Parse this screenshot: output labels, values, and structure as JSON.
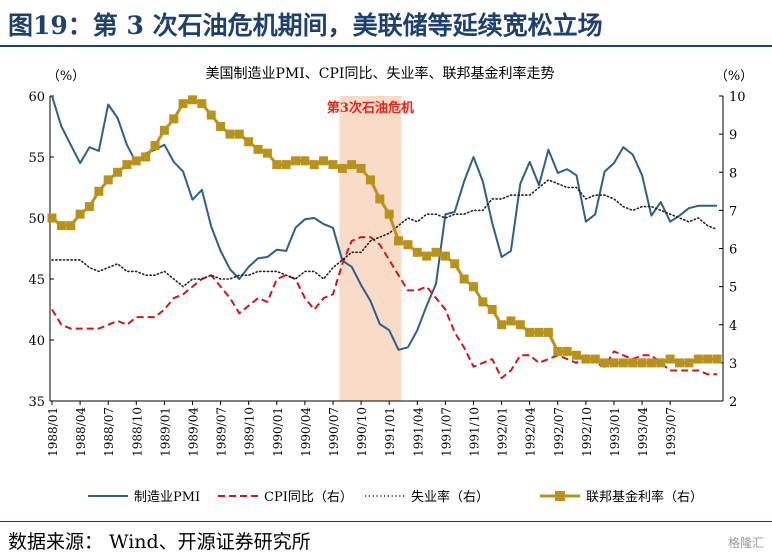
{
  "header": {
    "title": "图19：第 3 次石油危机期间，美联储等延续宽松立场"
  },
  "footer": {
    "source_label": "数据来源：",
    "source_text": "Wind、开源证券研究所",
    "watermark": "格隆汇"
  },
  "chart_data": {
    "type": "line",
    "title": "美国制造业PMI、CPI同比、失业率、联邦基金利率走势",
    "y_left_unit": "（%）",
    "y_right_unit": "（%）",
    "y_left_lim": [
      35,
      60
    ],
    "y_left_ticks": [
      "35",
      "40",
      "45",
      "50",
      "55",
      "60"
    ],
    "y_right_lim": [
      2,
      10
    ],
    "y_right_ticks": [
      "2",
      "3",
      "4",
      "5",
      "6",
      "7",
      "8",
      "9",
      "10"
    ],
    "x_tick_labels": [
      "1988/01",
      "1988/04",
      "1988/07",
      "1988/10",
      "1989/01",
      "1989/04",
      "1989/07",
      "1989/10",
      "1990/01",
      "1990/04",
      "1990/07",
      "1990/10",
      "1991/01",
      "1991/04",
      "1991/07",
      "1991/10",
      "1992/01",
      "1992/04",
      "1992/07",
      "1992/10",
      "1993/01",
      "1993/04",
      "1993/07"
    ],
    "shaded_period": {
      "label": "第3次石油危机",
      "start": "1990/08",
      "end": "1991/02",
      "color": "#f9dcc8",
      "label_color": "#e8231b"
    },
    "x": [
      "1988/01",
      "1988/02",
      "1988/03",
      "1988/04",
      "1988/05",
      "1988/06",
      "1988/07",
      "1988/08",
      "1988/09",
      "1988/10",
      "1988/11",
      "1988/12",
      "1989/01",
      "1989/02",
      "1989/03",
      "1989/04",
      "1989/05",
      "1989/06",
      "1989/07",
      "1989/08",
      "1989/09",
      "1989/10",
      "1989/11",
      "1989/12",
      "1990/01",
      "1990/02",
      "1990/03",
      "1990/04",
      "1990/05",
      "1990/06",
      "1990/07",
      "1990/08",
      "1990/09",
      "1990/10",
      "1990/11",
      "1990/12",
      "1991/01",
      "1991/02",
      "1991/03",
      "1991/04",
      "1991/05",
      "1991/06",
      "1991/07",
      "1991/08",
      "1991/09",
      "1991/10",
      "1991/11",
      "1991/12",
      "1992/01",
      "1992/02",
      "1992/03",
      "1992/04",
      "1992/05",
      "1992/06",
      "1992/07",
      "1992/08",
      "1992/09",
      "1992/10",
      "1992/11",
      "1992/12",
      "1993/01",
      "1993/02",
      "1993/03",
      "1993/04",
      "1993/05",
      "1993/06",
      "1993/07",
      "1993/08",
      "1993/09",
      "1993/10",
      "1993/11",
      "1993/12"
    ],
    "series": [
      {
        "name": "制造业PMI",
        "axis": "left",
        "style": "solid",
        "color": "#2e5f8a",
        "values": [
          60.0,
          57.5,
          56.0,
          54.5,
          55.8,
          55.5,
          59.3,
          58.2,
          56.0,
          54.5,
          55.3,
          55.6,
          56.0,
          54.6,
          53.8,
          51.5,
          52.3,
          49.3,
          47.3,
          45.8,
          45.0,
          46.0,
          46.7,
          46.8,
          47.4,
          47.3,
          49.2,
          49.9,
          50.0,
          49.5,
          49.2,
          46.5,
          46.0,
          44.5,
          43.2,
          41.3,
          40.8,
          39.2,
          39.4,
          40.8,
          42.8,
          44.6,
          50.3,
          50.5,
          53.0,
          55.0,
          53.0,
          49.6,
          46.8,
          47.3,
          52.8,
          54.6,
          52.7,
          55.6,
          53.7,
          54.0,
          53.5,
          49.7,
          50.3,
          53.8,
          54.5,
          55.8,
          55.2,
          53.5,
          50.2,
          51.3,
          49.7,
          50.2,
          50.8,
          51.0,
          51.0,
          51.0
        ]
      },
      {
        "name": "CPI同比（右）",
        "axis": "right",
        "style": "dashed",
        "color": "#c8191e",
        "values": [
          4.4,
          4.0,
          3.9,
          3.9,
          3.9,
          3.9,
          4.0,
          4.1,
          4.0,
          4.2,
          4.2,
          4.2,
          4.4,
          4.7,
          4.8,
          5.0,
          5.2,
          5.3,
          5.0,
          4.7,
          4.3,
          4.5,
          4.7,
          4.6,
          5.2,
          5.3,
          5.2,
          4.7,
          4.4,
          4.7,
          4.8,
          5.6,
          6.2,
          6.3,
          6.3,
          6.1,
          5.7,
          5.3,
          4.9,
          4.9,
          5.0,
          4.7,
          4.4,
          3.8,
          3.4,
          2.9,
          3.0,
          3.1,
          2.6,
          2.8,
          3.2,
          3.2,
          3.0,
          3.1,
          3.2,
          3.1,
          3.0,
          3.2,
          3.0,
          2.9,
          3.3,
          3.2,
          3.1,
          3.2,
          3.2,
          3.0,
          2.8,
          2.8,
          2.8,
          2.8,
          2.7,
          2.7
        ]
      },
      {
        "name": "失业率（右）",
        "axis": "right",
        "style": "dotted",
        "color": "#222222",
        "values": [
          5.7,
          5.7,
          5.7,
          5.7,
          5.5,
          5.4,
          5.5,
          5.6,
          5.4,
          5.4,
          5.3,
          5.3,
          5.4,
          5.2,
          5.0,
          5.2,
          5.2,
          5.3,
          5.2,
          5.2,
          5.3,
          5.3,
          5.4,
          5.4,
          5.4,
          5.3,
          5.2,
          5.4,
          5.4,
          5.2,
          5.5,
          5.7,
          5.9,
          5.9,
          6.2,
          6.3,
          6.4,
          6.6,
          6.8,
          6.7,
          6.9,
          6.9,
          6.8,
          6.9,
          6.9,
          7.0,
          7.0,
          7.3,
          7.3,
          7.4,
          7.4,
          7.4,
          7.6,
          7.8,
          7.7,
          7.6,
          7.6,
          7.3,
          7.4,
          7.4,
          7.3,
          7.1,
          7.0,
          7.1,
          7.1,
          7.0,
          6.9,
          6.8,
          6.7,
          6.8,
          6.6,
          6.5
        ]
      },
      {
        "name": "联邦基金利率（右）",
        "axis": "right",
        "style": "line-square",
        "color": "#b8921a",
        "values": [
          6.8,
          6.6,
          6.6,
          6.9,
          7.1,
          7.5,
          7.8,
          8.0,
          8.2,
          8.3,
          8.4,
          8.7,
          9.1,
          9.4,
          9.8,
          9.9,
          9.8,
          9.5,
          9.2,
          9.0,
          9.0,
          8.8,
          8.6,
          8.5,
          8.2,
          8.2,
          8.3,
          8.3,
          8.2,
          8.3,
          8.2,
          8.1,
          8.2,
          8.1,
          7.8,
          7.3,
          6.9,
          6.2,
          6.1,
          5.9,
          5.8,
          5.9,
          5.8,
          5.6,
          5.2,
          5.0,
          4.6,
          4.4,
          4.0,
          4.1,
          4.0,
          3.8,
          3.8,
          3.8,
          3.3,
          3.3,
          3.2,
          3.1,
          3.1,
          3.0,
          3.0,
          3.0,
          3.0,
          3.0,
          3.0,
          3.0,
          3.1,
          3.0,
          3.0,
          3.1,
          3.1,
          3.1
        ]
      }
    ]
  }
}
